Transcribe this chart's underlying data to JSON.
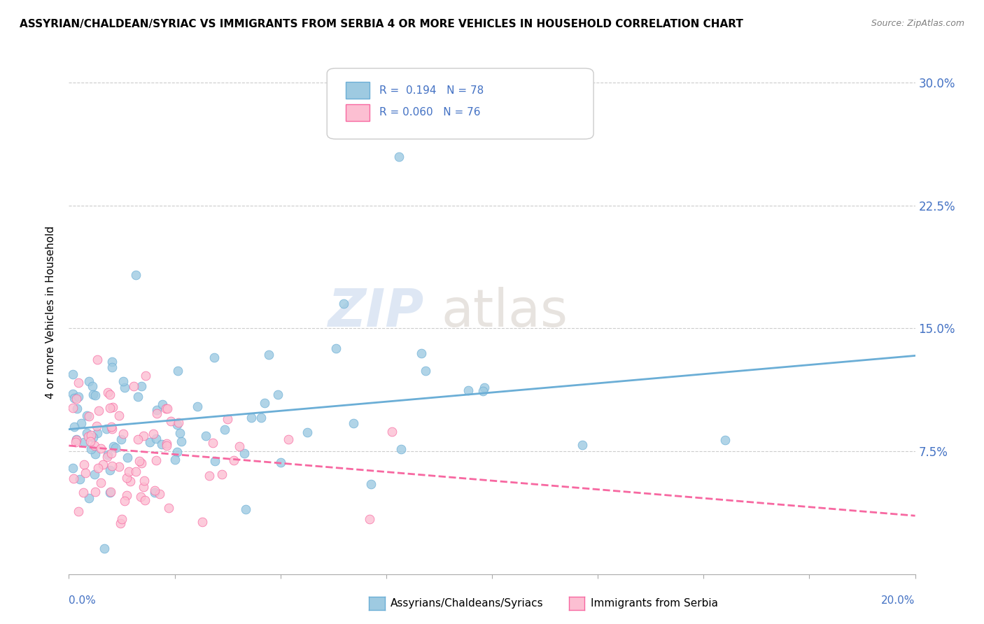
{
  "title": "ASSYRIAN/CHALDEAN/SYRIAC VS IMMIGRANTS FROM SERBIA 4 OR MORE VEHICLES IN HOUSEHOLD CORRELATION CHART",
  "source": "Source: ZipAtlas.com",
  "ylabel": "4 or more Vehicles in Household",
  "yticks": [
    "7.5%",
    "15.0%",
    "22.5%",
    "30.0%"
  ],
  "yticks_vals": [
    0.075,
    0.15,
    0.225,
    0.3
  ],
  "xlim": [
    0.0,
    0.2
  ],
  "ylim": [
    0.0,
    0.32
  ],
  "watermark_zip": "ZIP",
  "watermark_atlas": "atlas",
  "blue_color": "#6baed6",
  "blue_scatter_color": "#9ecae1",
  "pink_color": "#f768a1",
  "pink_scatter_color": "#fcbfd2",
  "blue_R": 0.194,
  "blue_N": 78,
  "pink_R": 0.06,
  "pink_N": 76
}
